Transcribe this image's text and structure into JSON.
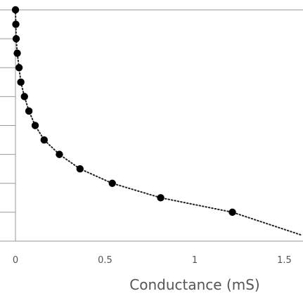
{
  "chart_data": {
    "type": "scatter",
    "title": "",
    "xlabel": "Conductance (mS)",
    "ylabel": "",
    "xlim": [
      0,
      1.6
    ],
    "x_ticks": [
      0,
      0.5,
      1,
      1.5
    ],
    "x_tick_labels": [
      "0",
      "0.5",
      "1",
      "1.5"
    ],
    "y_tick_count": 9,
    "grid": false,
    "legend": "none",
    "series": [
      {
        "marker": "filled-circle",
        "trendline": "dotted",
        "points": [
          [
            0.0,
            8.0
          ],
          [
            0.002,
            7.5
          ],
          [
            0.004,
            7.0
          ],
          [
            0.01,
            6.5
          ],
          [
            0.02,
            6.0
          ],
          [
            0.03,
            5.5
          ],
          [
            0.05,
            5.0
          ],
          [
            0.075,
            4.5
          ],
          [
            0.11,
            4.0
          ],
          [
            0.16,
            3.5
          ],
          [
            0.245,
            3.0
          ],
          [
            0.36,
            2.5
          ],
          [
            0.54,
            2.0
          ],
          [
            0.81,
            1.5
          ],
          [
            1.21,
            1.0
          ]
        ],
        "trendline_points": [
          [
            0.0,
            8.0
          ],
          [
            0.002,
            7.5
          ],
          [
            0.004,
            7.0
          ],
          [
            0.01,
            6.5
          ],
          [
            0.02,
            6.0
          ],
          [
            0.03,
            5.5
          ],
          [
            0.05,
            5.0
          ],
          [
            0.075,
            4.5
          ],
          [
            0.11,
            4.0
          ],
          [
            0.16,
            3.5
          ],
          [
            0.245,
            3.0
          ],
          [
            0.36,
            2.5
          ],
          [
            0.54,
            2.0
          ],
          [
            0.81,
            1.5
          ],
          [
            1.21,
            1.0
          ],
          [
            1.6,
            0.2
          ]
        ]
      }
    ],
    "colors": {
      "marker": "#000000",
      "axis": "#aaaaaa",
      "text": "#555555"
    }
  }
}
